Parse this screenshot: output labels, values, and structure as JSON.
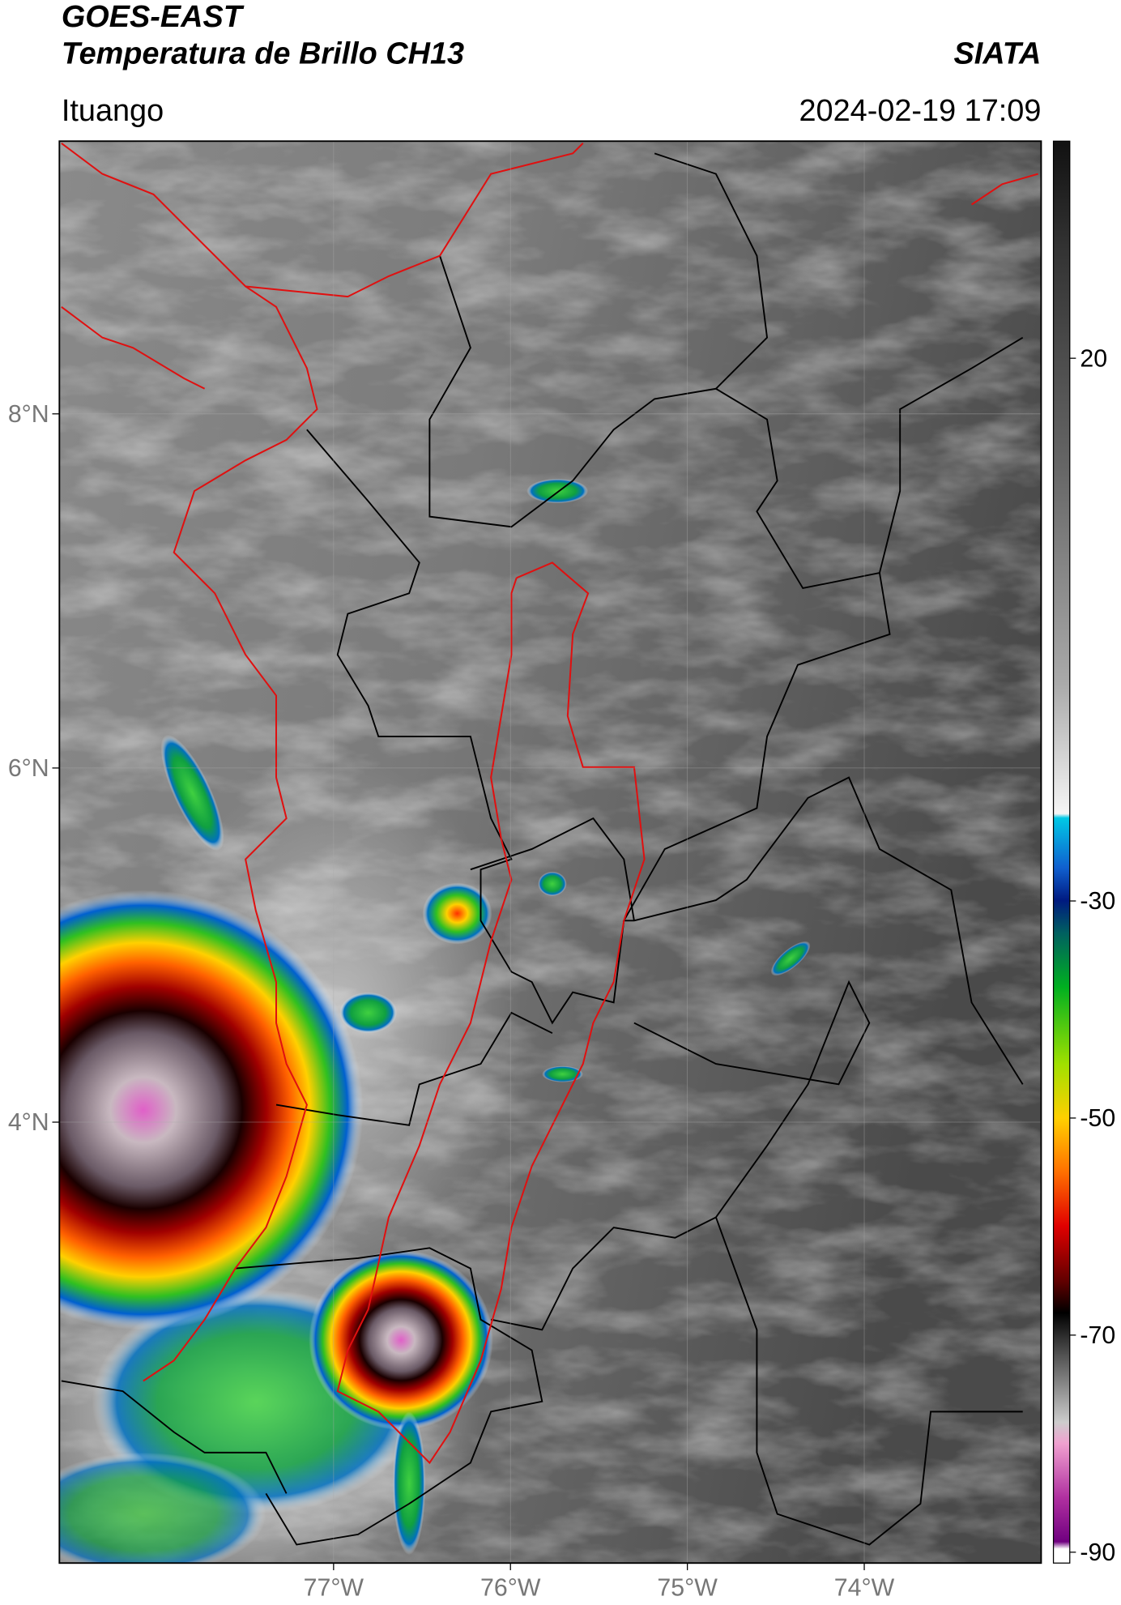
{
  "header": {
    "title": "GOES-EAST",
    "subtitle": "Temperatura de Brillo CH13",
    "source": "SIATA",
    "location": "Ituango",
    "datetime": "2024-02-19 17:09"
  },
  "map": {
    "xlim": [
      -78.55,
      -73.0
    ],
    "ylim": [
      1.51,
      9.54
    ],
    "xticks": [
      {
        "value": -77,
        "label": "77°W"
      },
      {
        "value": -76,
        "label": "76°W"
      },
      {
        "value": -75,
        "label": "75°W"
      },
      {
        "value": -74,
        "label": "74°W"
      }
    ],
    "yticks": [
      {
        "value": 8,
        "label": "8°N"
      },
      {
        "value": 6,
        "label": "6°N"
      },
      {
        "value": 4,
        "label": "4°N"
      }
    ]
  },
  "colorbar": {
    "range": [
      -91,
      40
    ],
    "ticks": [
      20,
      -30,
      -50,
      -70,
      -90
    ]
  }
}
